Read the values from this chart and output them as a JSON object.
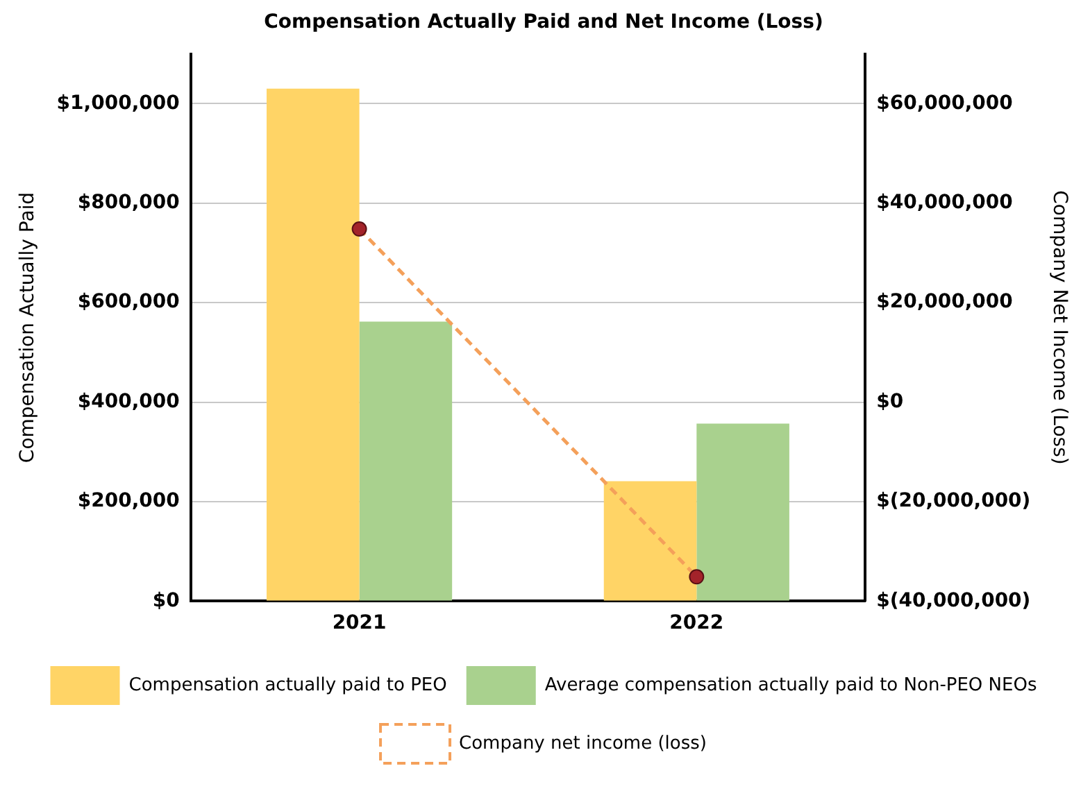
{
  "chart_data": {
    "type": "bar",
    "title": "Compensation Actually Paid and Net Income (Loss)",
    "ylabel": "Compensation Actually Paid",
    "y2label": "Company Net Income (Loss)",
    "categories": [
      "2021",
      "2022"
    ],
    "series": [
      {
        "name": "Compensation actually paid to PEO",
        "color": "#ffd466",
        "values": [
          1030000,
          241000
        ]
      },
      {
        "name": "Average compensation actually paid to Non-PEO NEOs",
        "color": "#a9d18e",
        "values": [
          562000,
          357000
        ]
      },
      {
        "name": "Company net income (loss)",
        "type": "line",
        "axis": "y2",
        "color": "#f4a05a",
        "values": [
          34800000,
          -35100000
        ],
        "marker": "circle",
        "line_style": "dashed"
      }
    ],
    "ylim": [
      0,
      1100000
    ],
    "yticks": [
      {
        "value": 0,
        "label": "$0"
      },
      {
        "value": 200000,
        "label": "$200,000"
      },
      {
        "value": 400000,
        "label": "$400,000"
      },
      {
        "value": 600000,
        "label": "$600,000"
      },
      {
        "value": 800000,
        "label": "$800,000"
      },
      {
        "value": 1000000,
        "label": "$1,000,000"
      }
    ],
    "y2lim": [
      -40000000,
      70000000
    ],
    "y2ticks": [
      {
        "value": -40000000,
        "label": "$(40,000,000)"
      },
      {
        "value": -20000000,
        "label": "$(20,000,000)"
      },
      {
        "value": 0,
        "label": "$0"
      },
      {
        "value": 20000000,
        "label": "$20,000,000"
      },
      {
        "value": 40000000,
        "label": "$40,000,000"
      },
      {
        "value": 60000000,
        "label": "$60,000,000"
      }
    ],
    "grid": "y",
    "legend": "bottom"
  }
}
